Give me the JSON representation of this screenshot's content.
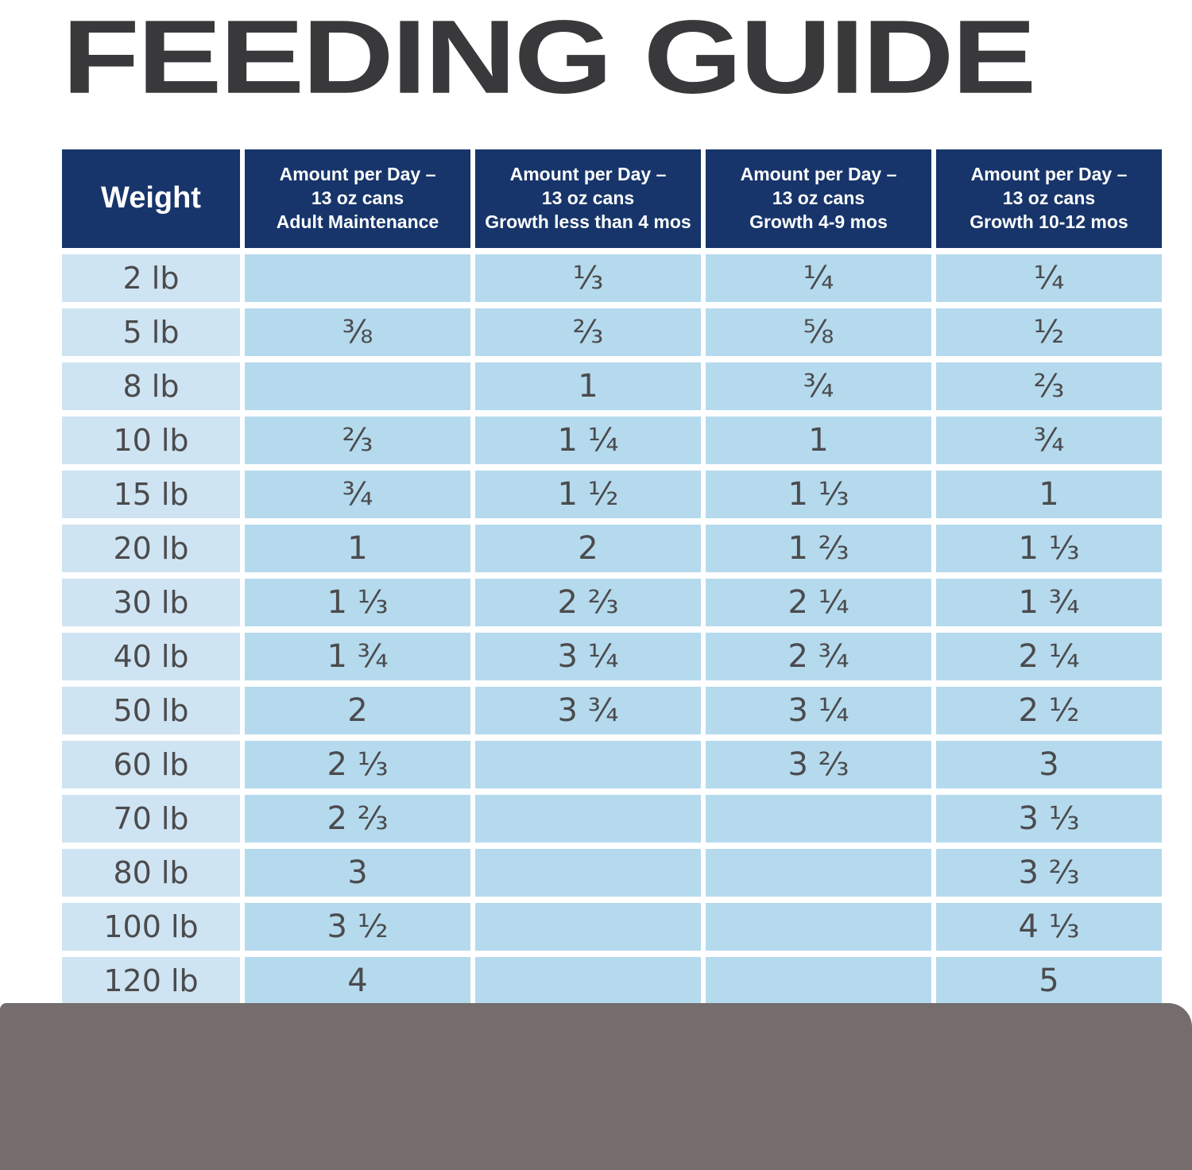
{
  "title": "FEEDING GUIDE",
  "colors": {
    "title_text": "#39383a",
    "header_bg": "#17356a",
    "header_text": "#ffffff",
    "weight_cell_bg": "#cfe4f3",
    "value_cell_bg": "#b5daee",
    "cell_text": "#4b4b4d",
    "footer_bar": "#756d6d"
  },
  "table": {
    "columns": [
      "Weight",
      "Amount per Day –\n13 oz cans\nAdult Maintenance",
      "Amount per Day –\n13 oz cans\nGrowth less than 4 mos",
      "Amount per Day –\n13 oz cans\nGrowth 4-9 mos",
      "Amount per Day –\n13 oz cans\nGrowth 10-12 mos"
    ],
    "rows": [
      {
        "weight": "2 lb",
        "values": [
          "",
          "⅓",
          "¼",
          "¼"
        ]
      },
      {
        "weight": "5 lb",
        "values": [
          "⅜",
          "⅔",
          "⅝",
          "½"
        ]
      },
      {
        "weight": "8 lb",
        "values": [
          "",
          "1",
          "¾",
          "⅔"
        ]
      },
      {
        "weight": "10 lb",
        "values": [
          "⅔",
          "1 ¼",
          "1",
          "¾"
        ]
      },
      {
        "weight": "15 lb",
        "values": [
          "¾",
          "1 ½",
          "1 ⅓",
          "1"
        ]
      },
      {
        "weight": "20 lb",
        "values": [
          "1",
          "2",
          "1 ⅔",
          "1 ⅓"
        ]
      },
      {
        "weight": "30 lb",
        "values": [
          "1 ⅓",
          "2 ⅔",
          "2 ¼",
          "1 ¾"
        ]
      },
      {
        "weight": "40 lb",
        "values": [
          "1 ¾",
          "3 ¼",
          "2 ¾",
          "2 ¼"
        ]
      },
      {
        "weight": "50 lb",
        "values": [
          "2",
          "3 ¾",
          "3 ¼",
          "2 ½"
        ]
      },
      {
        "weight": "60 lb",
        "values": [
          "2 ⅓",
          "",
          "3 ⅔",
          "3"
        ]
      },
      {
        "weight": "70 lb",
        "values": [
          "2 ⅔",
          "",
          "",
          "3 ⅓"
        ]
      },
      {
        "weight": "80 lb",
        "values": [
          "3",
          "",
          "",
          "3 ⅔"
        ]
      },
      {
        "weight": "100 lb",
        "values": [
          "3 ½",
          "",
          "",
          "4 ⅓"
        ]
      },
      {
        "weight": "120 lb",
        "values": [
          "4",
          "",
          "",
          "5"
        ]
      }
    ]
  }
}
